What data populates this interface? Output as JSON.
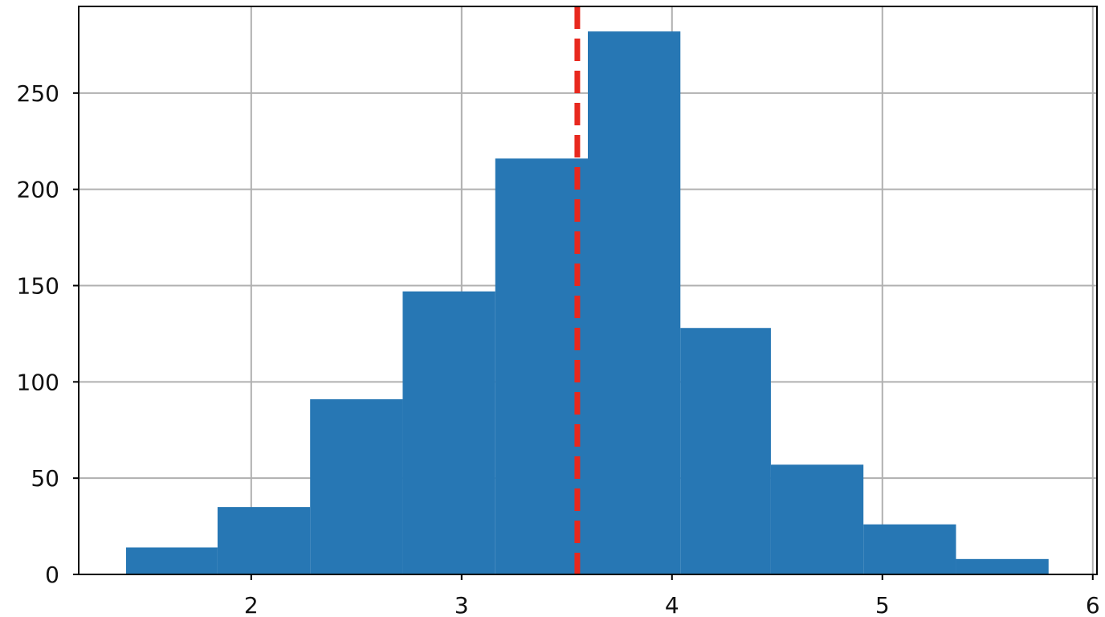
{
  "chart_data": {
    "type": "histogram",
    "bins": [
      1.405,
      1.84,
      2.28,
      2.72,
      3.16,
      3.6,
      4.04,
      4.47,
      4.91,
      5.35,
      5.79
    ],
    "values": [
      14,
      35,
      91,
      147,
      216,
      282,
      128,
      57,
      26,
      8
    ],
    "color": "#2777b4",
    "xlim": [
      1.18,
      6.02
    ],
    "xticks": [
      2,
      3,
      4,
      5,
      6
    ],
    "ylim": [
      0,
      295
    ],
    "yticks": [
      0,
      50,
      100,
      150,
      200,
      250
    ],
    "grid": true,
    "vline": {
      "x": 3.55,
      "color": "#e8281e",
      "style": "dashed"
    }
  }
}
